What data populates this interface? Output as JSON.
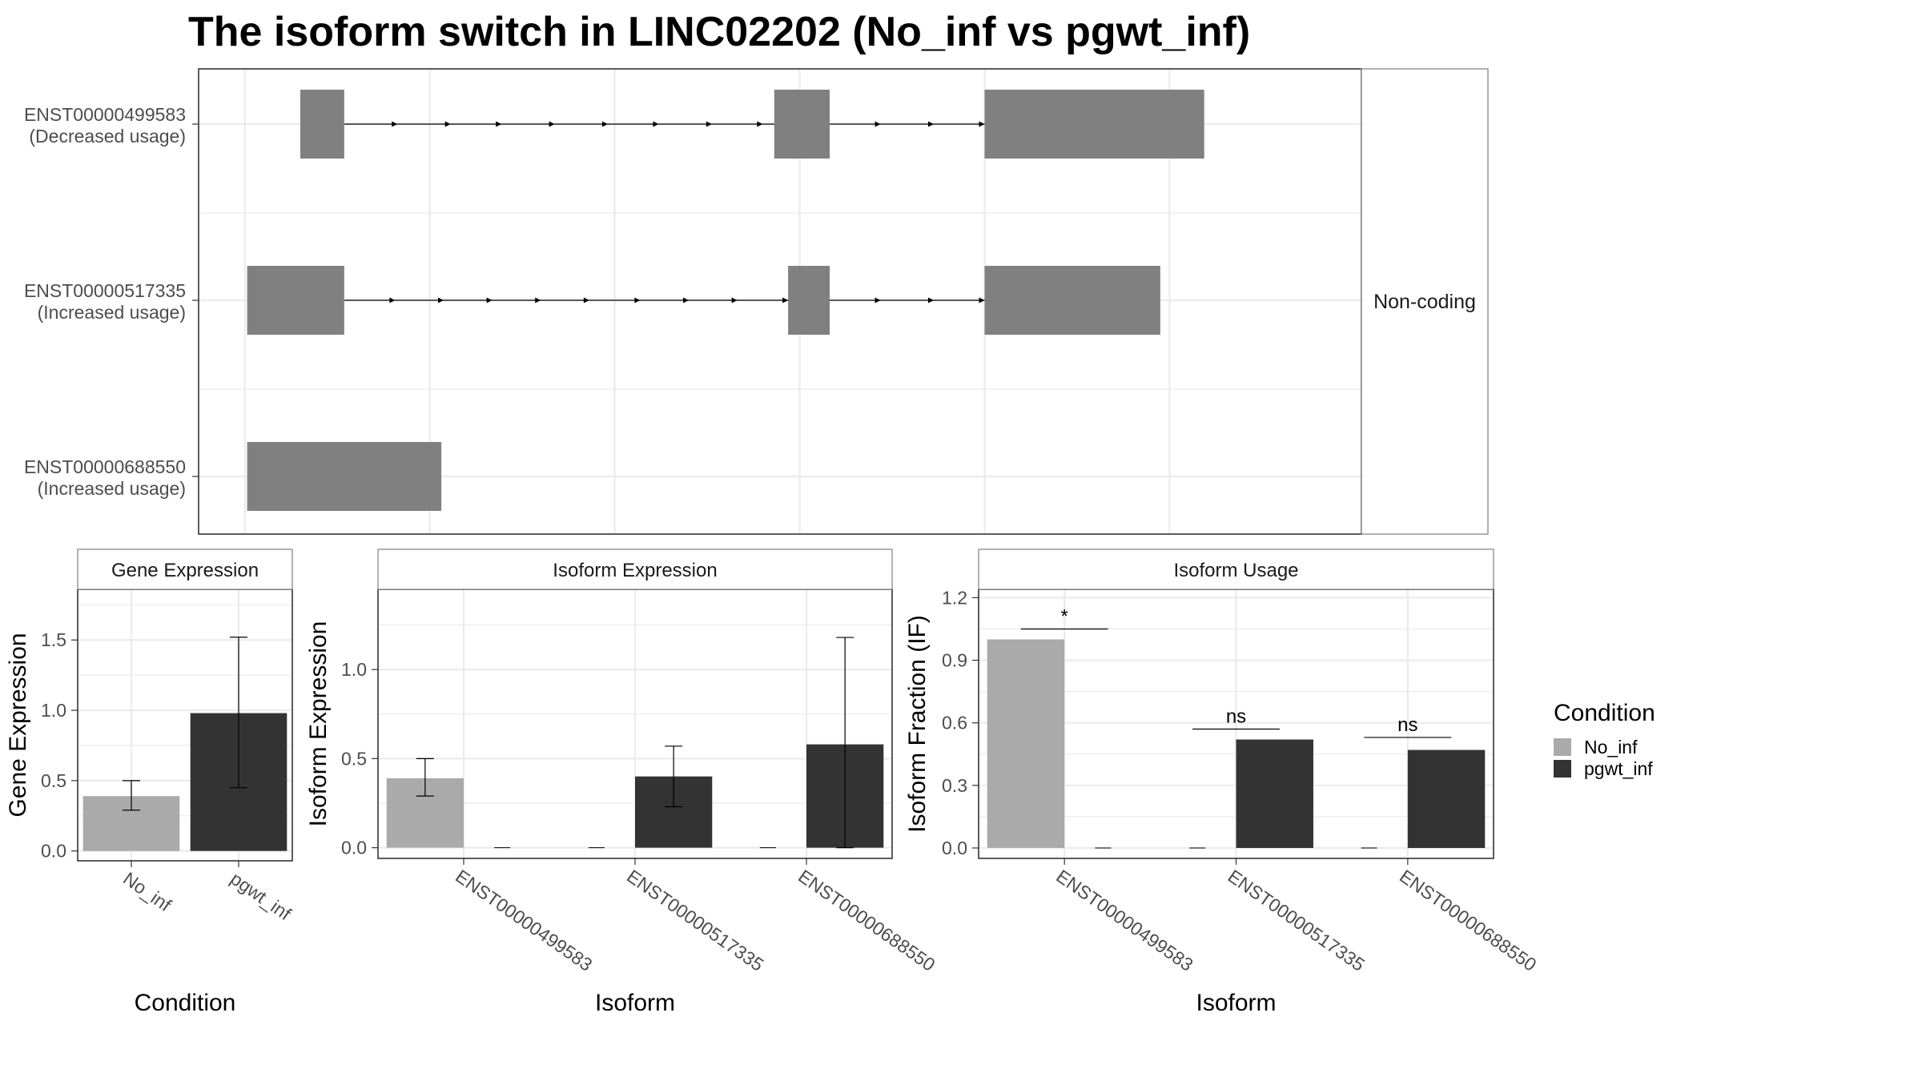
{
  "title": "The isoform switch in LINC02202 (No_inf vs pgwt_inf)",
  "colors": {
    "No_inf": "#aaaaaa",
    "pgwt_inf": "#333333",
    "exon": "#808080",
    "grid": "#ebebeb",
    "panel_border": "#333333",
    "strip_border": "#7f7f7f",
    "tick_text": "#4d4d4d"
  },
  "chart_data": [
    {
      "id": "structure",
      "type": "isoform-structure",
      "facet_label": "Non-coding",
      "isoforms": [
        {
          "name": "ENST00000499583",
          "usage": "(Decreased usage)",
          "exons": [
            [
              120,
              215
            ],
            [
              1145,
              1265
            ],
            [
              1600,
              2075
            ]
          ],
          "arrowheads": [
            330,
            445,
            555,
            670,
            785,
            895,
            1010,
            1120,
            1375,
            1490,
            1600
          ]
        },
        {
          "name": "ENST00000517335",
          "usage": "(Increased usage)",
          "exons": [
            [
              5,
              215
            ],
            [
              1175,
              1265
            ],
            [
              1600,
              1980
            ]
          ],
          "arrowheads": [
            325,
            430,
            535,
            640,
            745,
            855,
            960,
            1065,
            1175,
            1375,
            1490,
            1600
          ]
        },
        {
          "name": "ENST00000688550",
          "usage": "(Increased usage)",
          "exons": [
            [
              5,
              425
            ]
          ],
          "arrowheads": []
        }
      ],
      "xlim": [
        -100,
        2415
      ],
      "x_gridlines": [
        0,
        400,
        800,
        1200,
        1600,
        2000
      ]
    },
    {
      "id": "gene_expression",
      "type": "bar",
      "strip_title": "Gene Expression",
      "xlabel": "Condition",
      "ylabel": "Gene Expression",
      "categories": [
        "No_inf",
        "pgwt_inf"
      ],
      "values": [
        0.39,
        0.98
      ],
      "error_low": [
        0.29,
        0.45
      ],
      "error_high": [
        0.5,
        1.52
      ],
      "ylim": [
        -0.07,
        1.86
      ],
      "yticks": [
        0.0,
        0.5,
        1.0,
        1.5
      ],
      "ytick_labels": [
        "0.0",
        "0.5",
        "1.0",
        "1.5"
      ]
    },
    {
      "id": "isoform_expression",
      "type": "bar",
      "strip_title": "Isoform Expression",
      "xlabel": "Isoform",
      "ylabel": "Isoform Expression",
      "categories": [
        "ENST00000499583",
        "ENST00000517335",
        "ENST00000688550"
      ],
      "series": [
        {
          "condition": "No_inf",
          "values": [
            0.39,
            0.0,
            0.0
          ],
          "error_low": [
            0.29,
            null,
            null
          ],
          "error_high": [
            0.5,
            null,
            null
          ]
        },
        {
          "condition": "pgwt_inf",
          "values": [
            0.0,
            0.4,
            0.58
          ],
          "error_low": [
            null,
            0.23,
            0.0
          ],
          "error_high": [
            null,
            0.57,
            1.18
          ]
        }
      ],
      "ylim": [
        -0.06,
        1.45
      ],
      "yticks": [
        0.0,
        0.5,
        1.0
      ],
      "ytick_labels": [
        "0.0",
        "0.5",
        "1.0"
      ]
    },
    {
      "id": "isoform_usage",
      "type": "bar",
      "strip_title": "Isoform Usage",
      "xlabel": "Isoform",
      "ylabel": "Isoform Fraction (IF)",
      "categories": [
        "ENST00000499583",
        "ENST00000517335",
        "ENST00000688550"
      ],
      "series": [
        {
          "condition": "No_inf",
          "values": [
            1.0,
            0.0,
            0.0
          ]
        },
        {
          "condition": "pgwt_inf",
          "values": [
            0.0,
            0.52,
            0.47
          ]
        }
      ],
      "significance": [
        {
          "label": "*",
          "y": 1.05
        },
        {
          "label": "ns",
          "y": 0.57
        },
        {
          "label": "ns",
          "y": 0.53
        }
      ],
      "ylim": [
        -0.05,
        1.24
      ],
      "yticks": [
        0.0,
        0.3,
        0.6,
        0.9,
        1.2
      ],
      "ytick_labels": [
        "0.0",
        "0.3",
        "0.6",
        "0.9",
        "1.2"
      ]
    }
  ],
  "legend": {
    "title": "Condition",
    "entries": [
      "No_inf",
      "pgwt_inf"
    ]
  }
}
